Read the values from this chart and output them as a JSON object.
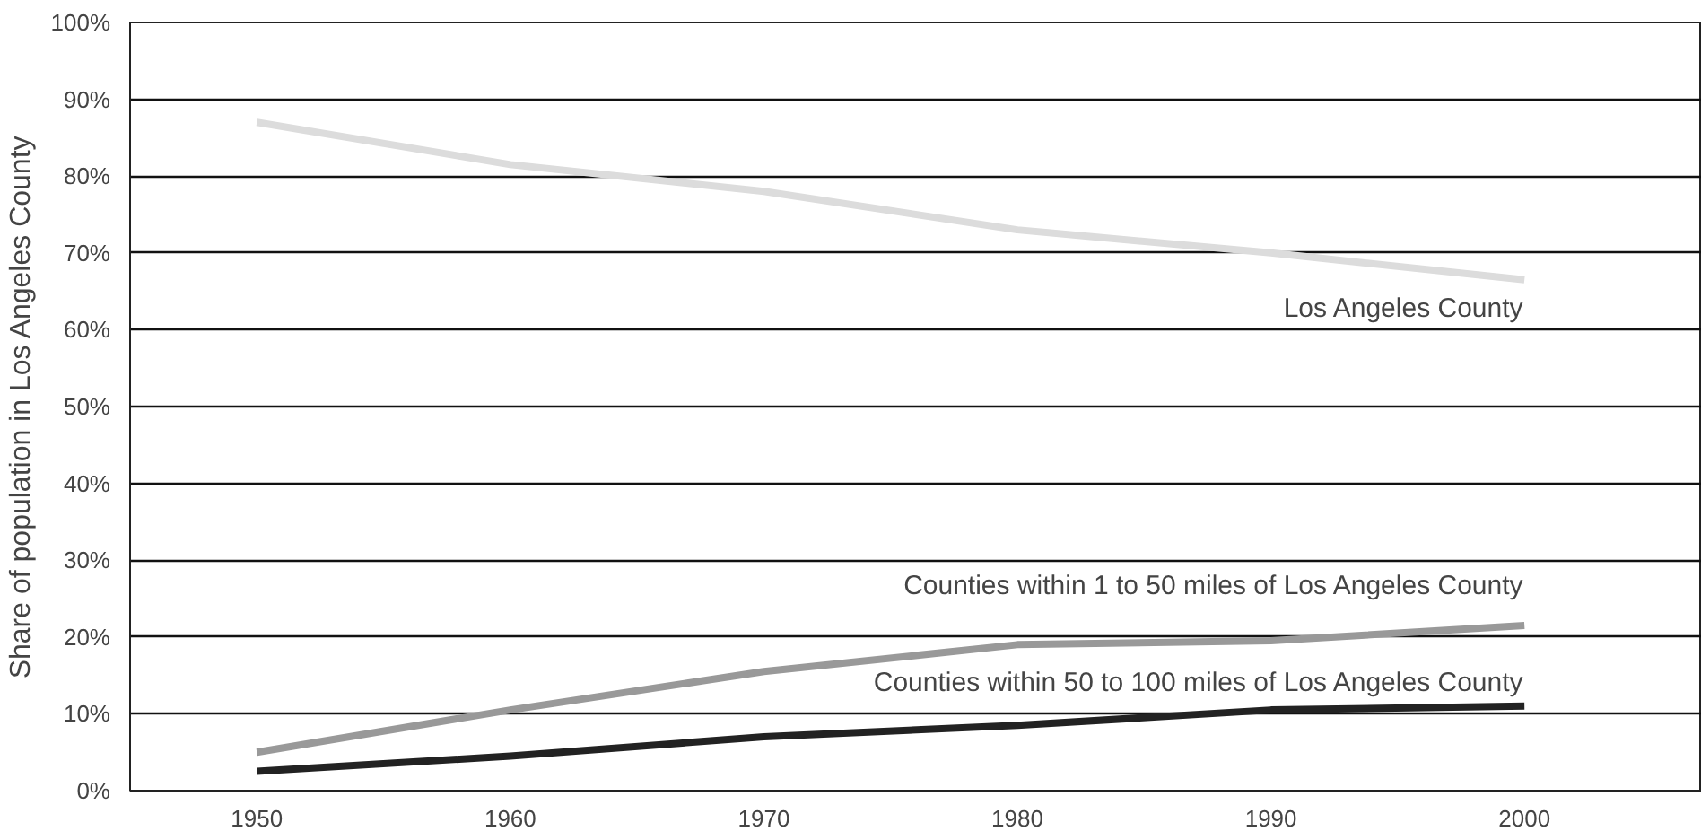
{
  "chart_data": {
    "type": "line",
    "ylabel": "Share of population in Los Angeles County",
    "x": [
      1950,
      1960,
      1970,
      1980,
      1990,
      2000
    ],
    "series": [
      {
        "name": "Los Angeles County",
        "color": "#dcdcdc",
        "values": [
          87,
          81.5,
          78,
          73,
          70,
          66.5
        ]
      },
      {
        "name": "Counties within 1 to 50 miles of Los Angeles County",
        "color": "#999999",
        "values": [
          5,
          10.5,
          15.5,
          19,
          19.5,
          21.5
        ]
      },
      {
        "name": "Counties within 50 to 100 miles of Los Angeles County",
        "color": "#222222",
        "values": [
          2.5,
          4.5,
          7,
          8.5,
          10.5,
          11
        ]
      }
    ],
    "xlim": [
      1945,
      2007
    ],
    "xticks": [
      1950,
      1960,
      1970,
      1980,
      1990,
      2000
    ],
    "ylim": [
      0,
      100
    ],
    "yticks": [
      {
        "value": 0,
        "label": "0%"
      },
      {
        "value": 10,
        "label": "10%"
      },
      {
        "value": 20,
        "label": "20%"
      },
      {
        "value": 30,
        "label": "30%"
      },
      {
        "value": 40,
        "label": "40%"
      },
      {
        "value": 50,
        "label": "50%"
      },
      {
        "value": 60,
        "label": "60%"
      },
      {
        "value": 70,
        "label": "70%"
      },
      {
        "value": 80,
        "label": "80%"
      },
      {
        "value": 90,
        "label": "90%"
      },
      {
        "value": 100,
        "label": "100%"
      }
    ],
    "grid": "y",
    "legend": false,
    "marker": "none",
    "line_style": "solid"
  }
}
